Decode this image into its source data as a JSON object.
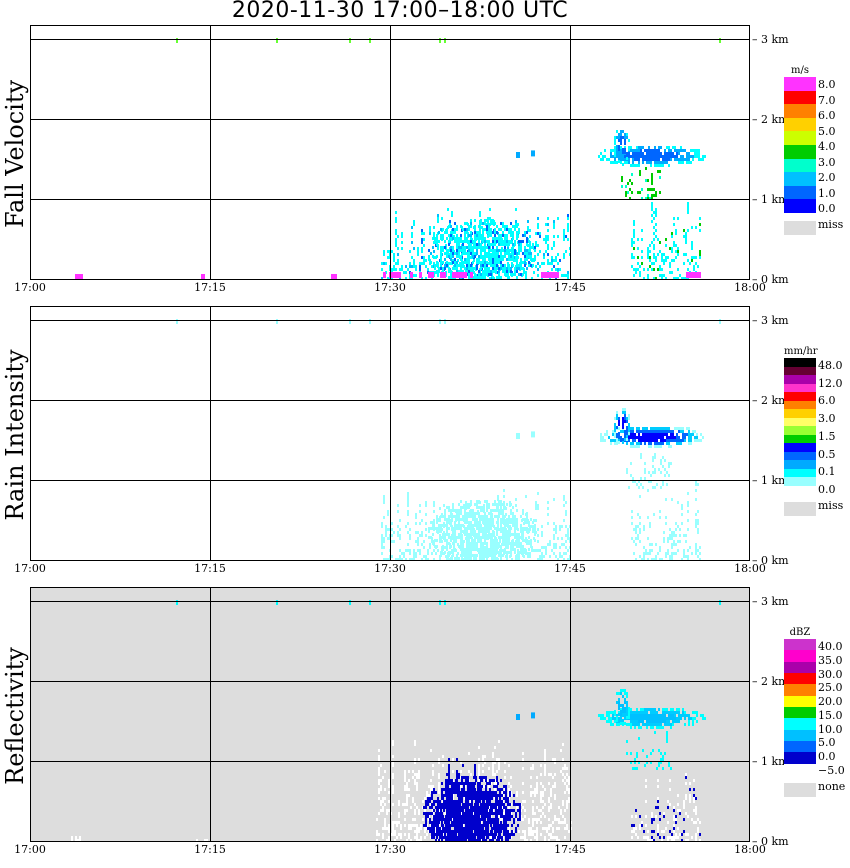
{
  "title": "2020-11-30   17:00–18:00 UTC",
  "x_ticks": [
    "17:00",
    "17:15",
    "17:30",
    "17:45",
    "18:00"
  ],
  "y_ticks": [
    "0 km",
    "1 km",
    "2 km",
    "3 km"
  ],
  "chart_data": [
    {
      "type": "heatmap",
      "ylabel": "Fall Velocity",
      "background": "#ffffff",
      "legend": {
        "unit": "m/s",
        "labels": [
          "8.0",
          "7.0",
          "6.0",
          "5.0",
          "4.0",
          "3.0",
          "2.0",
          "1.0",
          "0.0"
        ],
        "colors": [
          "#ff33ff",
          "#ff0000",
          "#ff8000",
          "#ffd000",
          "#ccff00",
          "#00cc00",
          "#00ffcc",
          "#00c0ff",
          "#0066ff",
          "#0000ff"
        ],
        "missing_label": "miss",
        "missing_color": "#dddddd"
      },
      "x_range": [
        "17:00",
        "18:00"
      ],
      "y_range_km": [
        0,
        3.2
      ]
    },
    {
      "type": "heatmap",
      "ylabel": "Rain Intensity",
      "background": "#ffffff",
      "legend": {
        "unit": "mm/hr",
        "labels": [
          "48.0",
          "12.0",
          "6.0",
          "3.0",
          "1.5",
          "0.5",
          "0.1",
          "0.0"
        ],
        "colors": [
          "#000000",
          "#660033",
          "#aa00aa",
          "#ff33cc",
          "#ff0000",
          "#ff8000",
          "#ffd000",
          "#ffff66",
          "#99ff33",
          "#00cc00",
          "#0000ff",
          "#0066ff",
          "#00aaff",
          "#00ffff",
          "#99ffff",
          "#ffffff"
        ],
        "missing_label": "miss",
        "missing_color": "#dddddd"
      },
      "x_range": [
        "17:00",
        "18:00"
      ],
      "y_range_km": [
        0,
        3.2
      ]
    },
    {
      "type": "heatmap",
      "ylabel": "Reflectivity",
      "background": "#dddddd",
      "legend": {
        "unit": "dBZ",
        "labels": [
          "40.0",
          "35.0",
          "30.0",
          "25.0",
          "20.0",
          "15.0",
          "10.0",
          "5.0",
          "0.0",
          "−5.0"
        ],
        "colors": [
          "#cc33cc",
          "#ff00cc",
          "#aa00aa",
          "#ff0000",
          "#ff8000",
          "#ffff00",
          "#00cc00",
          "#00ffff",
          "#00c0ff",
          "#0066ff",
          "#0000cc",
          "#ffffff"
        ],
        "missing_label": "none",
        "missing_color": "#dddddd"
      },
      "x_range": [
        "17:00",
        "18:00"
      ],
      "y_range_km": [
        0,
        3.2
      ]
    }
  ]
}
